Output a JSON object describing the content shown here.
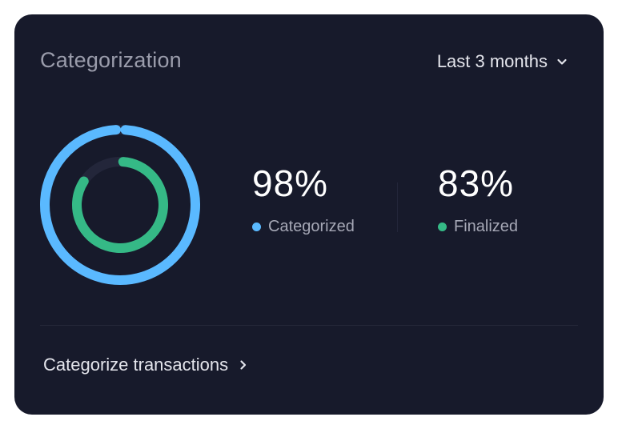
{
  "card": {
    "title": "Categorization",
    "period_selector": {
      "label": "Last 3 months",
      "icon": "chevron-down-icon"
    },
    "stats": [
      {
        "value": "98%",
        "label": "Categorized",
        "fraction": 0.98,
        "color": "#5ab9ff"
      },
      {
        "value": "83%",
        "label": "Finalized",
        "fraction": 0.83,
        "color": "#35b986"
      }
    ],
    "track_color": "#23263a",
    "cta": {
      "label": "Categorize transactions",
      "icon": "chevron-right-icon"
    }
  }
}
